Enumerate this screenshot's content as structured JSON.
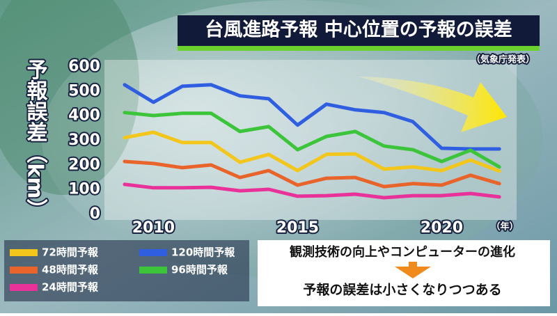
{
  "chart_data": {
    "type": "line",
    "title": "台風進路予報 中心位置の予報の誤差",
    "subtitle": "（気象庁発表）",
    "y_label": "予報誤差（km）",
    "x_unit_label": "（年）",
    "annotations": [
      "観測技術の向上やコンピューターの進化",
      "予報の誤差は小さくなりつつある"
    ],
    "x": [
      2009,
      2010,
      2011,
      2012,
      2013,
      2014,
      2015,
      2016,
      2017,
      2018,
      2019,
      2020,
      2021,
      2022
    ],
    "xlim": [
      2008.3,
      2022.55
    ],
    "xticks": [
      2010,
      2015,
      2020
    ],
    "ylim": [
      0,
      600
    ],
    "yticks": [
      0,
      100,
      200,
      300,
      400,
      500,
      600
    ],
    "series": [
      {
        "name": "72時間予報",
        "color": "#f3c61c",
        "values": [
          312,
          334,
          292,
          292,
          212,
          244,
          178,
          244,
          246,
          184,
          193,
          178,
          221,
          176
        ]
      },
      {
        "name": "120時間予報",
        "color": "#2f5fe0",
        "values": [
          527,
          456,
          521,
          527,
          482,
          470,
          363,
          448,
          425,
          414,
          377,
          269,
          266,
          266
        ]
      },
      {
        "name": "48時間予報",
        "color": "#e8642a",
        "values": [
          215,
          207,
          190,
          201,
          150,
          178,
          119,
          147,
          150,
          113,
          125,
          119,
          159,
          125
        ]
      },
      {
        "name": "96時間予報",
        "color": "#3cc43a",
        "values": [
          414,
          402,
          411,
          411,
          337,
          357,
          263,
          317,
          337,
          278,
          263,
          215,
          261,
          193
        ]
      },
      {
        "name": "24時間予報",
        "color": "#e8329a",
        "values": [
          122,
          108,
          108,
          110,
          96,
          102,
          74,
          76,
          82,
          68,
          76,
          76,
          85,
          71
        ]
      }
    ]
  }
}
